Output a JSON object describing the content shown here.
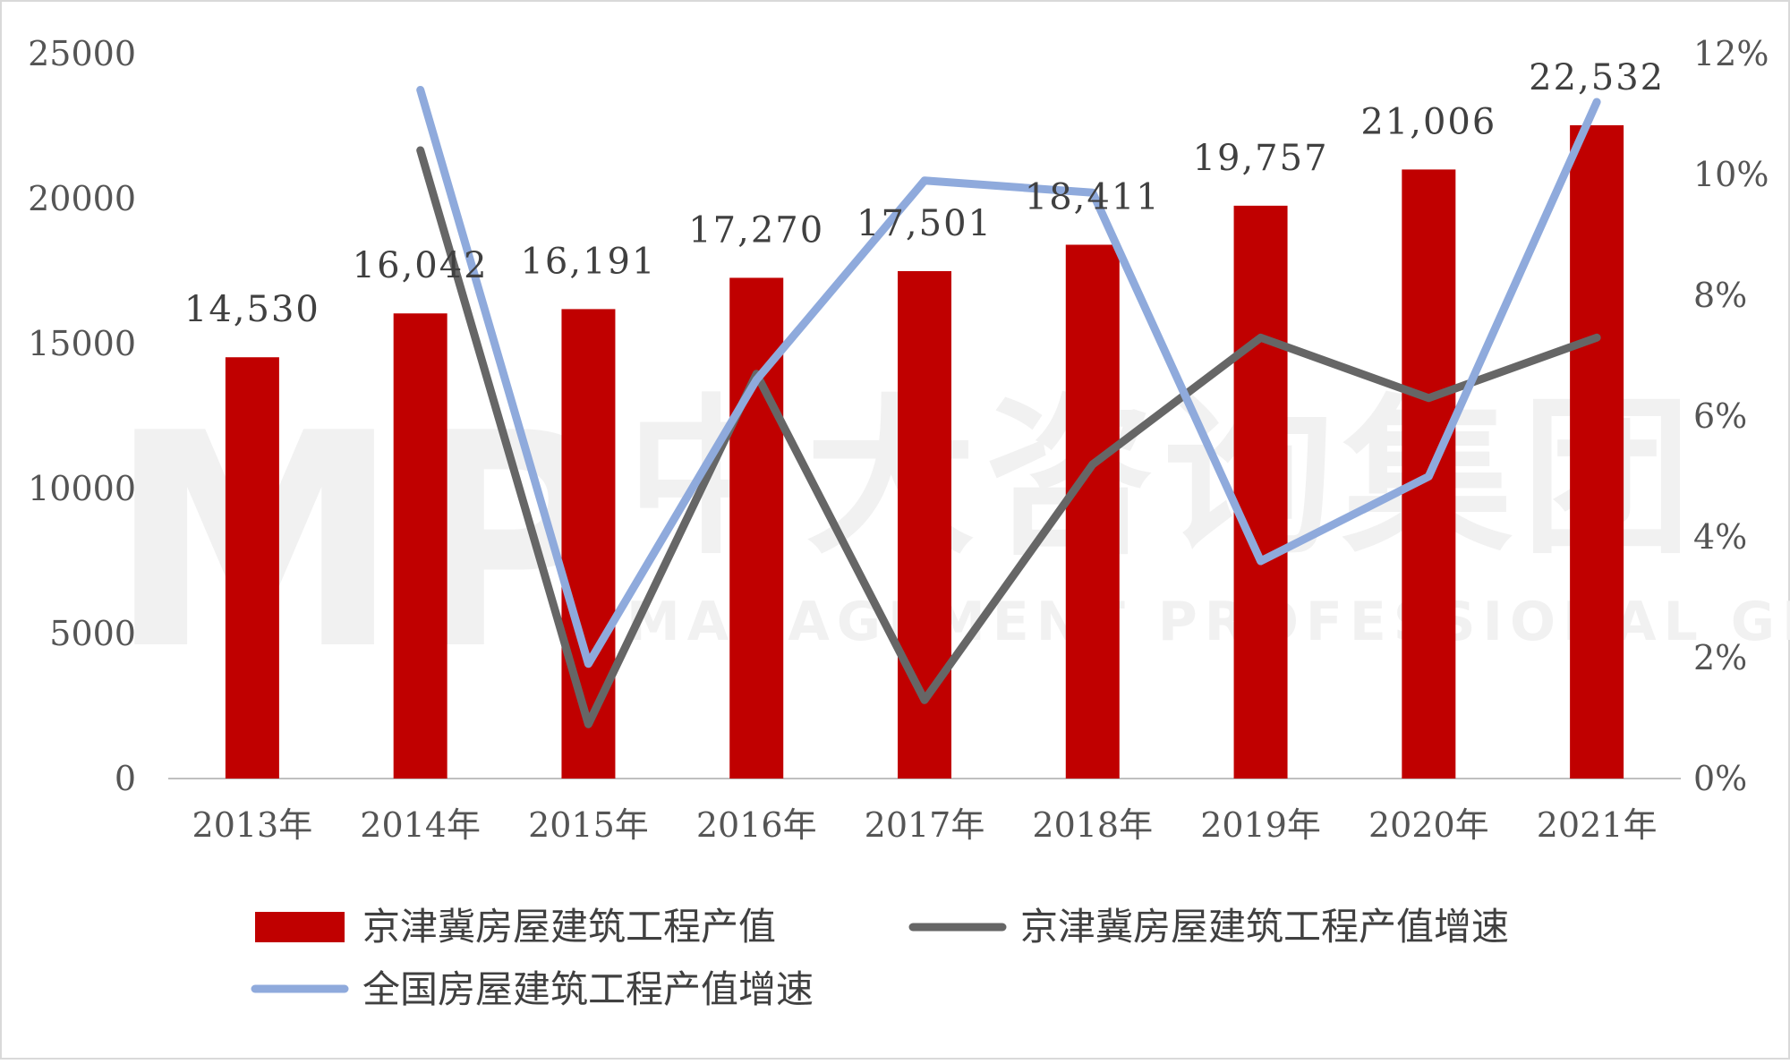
{
  "watermark": {
    "logo": "MP",
    "cn": "中大咨询集团",
    "en": "MANAGEMENT PROFESSIONAL GROUP"
  },
  "colors": {
    "bar": "#c00000",
    "line_regional": "#666666",
    "line_national": "#8faadc",
    "axis": "#bfbfbf"
  },
  "chart_data": {
    "type": "bar",
    "categories": [
      "2013年",
      "2014年",
      "2015年",
      "2016年",
      "2017年",
      "2018年",
      "2019年",
      "2020年",
      "2021年"
    ],
    "y_left": {
      "ticks": [
        "25000",
        "20000",
        "15000",
        "10000",
        "5000",
        "0"
      ],
      "ylim": [
        0,
        25000
      ]
    },
    "y_right": {
      "ticks": [
        "12%",
        "10%",
        "8%",
        "6%",
        "4%",
        "2%",
        "0%"
      ],
      "ylim": [
        0,
        12
      ]
    },
    "series": [
      {
        "name": "京津冀房屋建筑工程产值",
        "type": "bar",
        "axis": "left",
        "values": [
          14530,
          16042,
          16191,
          17270,
          17501,
          18411,
          19757,
          21006,
          22532
        ],
        "labels": [
          "14,530",
          "16,042",
          "16,191",
          "17,270",
          "17,501",
          "18,411",
          "19,757",
          "21,006",
          "22,532"
        ]
      },
      {
        "name": "京津冀房屋建筑工程产值增速",
        "type": "line",
        "axis": "right",
        "values": [
          null,
          10.4,
          0.9,
          6.7,
          1.3,
          5.2,
          7.3,
          6.3,
          7.3
        ]
      },
      {
        "name": "全国房屋建筑工程产值增速",
        "type": "line",
        "axis": "right",
        "values": [
          null,
          11.4,
          1.9,
          6.6,
          9.9,
          9.7,
          3.6,
          5.0,
          11.2
        ]
      }
    ],
    "legend": "bottom"
  }
}
